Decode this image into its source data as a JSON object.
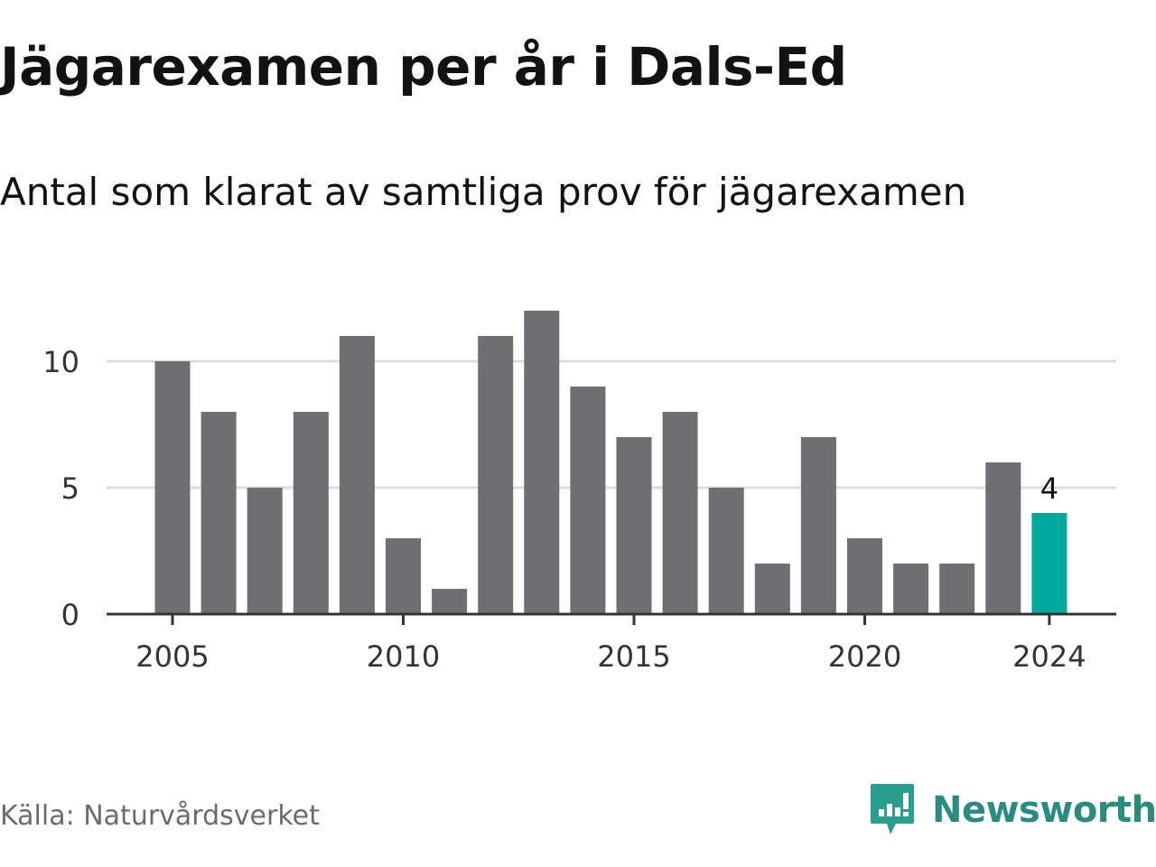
{
  "title": "Jägarexamen per år i Dals-Ed",
  "subtitle": "Antal som klarat av samtliga prov för jägarexamen",
  "source": "Källa: Naturvårdsverket",
  "brand": {
    "name": "Newsworthy",
    "icon": "newsworthy-logo-icon",
    "color": "#2a9d8f"
  },
  "colors": {
    "bar": "#6e6e73",
    "highlight": "#00a99d",
    "grid": "#dcdcdc",
    "axis": "#333333"
  },
  "chart_data": {
    "type": "bar",
    "x": [
      2005,
      2006,
      2007,
      2008,
      2009,
      2010,
      2011,
      2012,
      2013,
      2014,
      2015,
      2016,
      2017,
      2018,
      2019,
      2020,
      2021,
      2022,
      2023,
      2024
    ],
    "values": [
      10,
      8,
      5,
      8,
      11,
      3,
      1,
      11,
      12,
      9,
      7,
      8,
      5,
      2,
      7,
      3,
      2,
      2,
      6,
      4
    ],
    "highlight": {
      "x": 2024,
      "label": "4"
    },
    "xticks": [
      "2005",
      "2010",
      "2015",
      "2020",
      "2024"
    ],
    "yticks": [
      "0",
      "5",
      "10"
    ],
    "ylim": [
      0,
      12
    ],
    "xlabel": "",
    "ylabel": "",
    "grid": true,
    "legend": "none"
  }
}
